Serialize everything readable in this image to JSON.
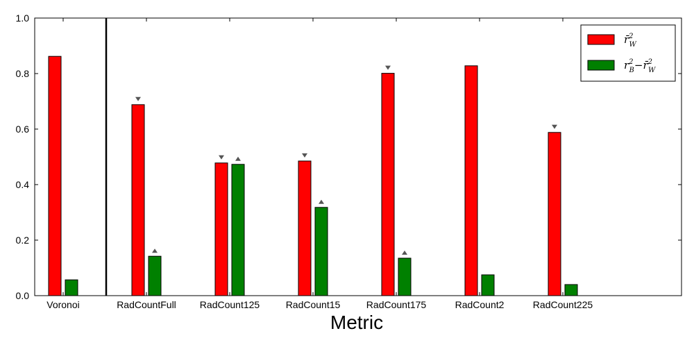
{
  "chart_data": {
    "type": "bar",
    "title": "",
    "xlabel": "Metric",
    "ylabel": "",
    "ylim": [
      0,
      1.0
    ],
    "yticks": [
      "0.0",
      "0.2",
      "0.4",
      "0.6",
      "0.8",
      "1.0"
    ],
    "categories": [
      "Voronoi",
      "RadCountFull",
      "RadCount125",
      "RadCount15",
      "RadCount175",
      "RadCount2",
      "RadCount225"
    ],
    "series": [
      {
        "name": "r̄²_W",
        "color": "#ff0000",
        "values": [
          0.862,
          0.688,
          0.478,
          0.485,
          0.801,
          0.828,
          0.588
        ],
        "markers": [
          null,
          "down",
          "down",
          "down",
          "down",
          null,
          "down"
        ]
      },
      {
        "name": "r²_B − r̄²_W",
        "color": "#008000",
        "values": [
          0.057,
          0.142,
          0.473,
          0.318,
          0.135,
          0.075,
          0.04
        ],
        "markers": [
          null,
          "up",
          "up",
          "up",
          "up",
          null,
          null
        ]
      }
    ],
    "separator_after_category": 0,
    "legend_position": "top-right",
    "grid": false
  },
  "legend": {
    "item1": {
      "base": "r̄",
      "sup": "2",
      "sub": "W"
    },
    "item2": {
      "base1": "r",
      "sup1": "2",
      "sub1": "B",
      "minus": "−",
      "base2": "r̄",
      "sup2": "2",
      "sub2": "W"
    }
  }
}
